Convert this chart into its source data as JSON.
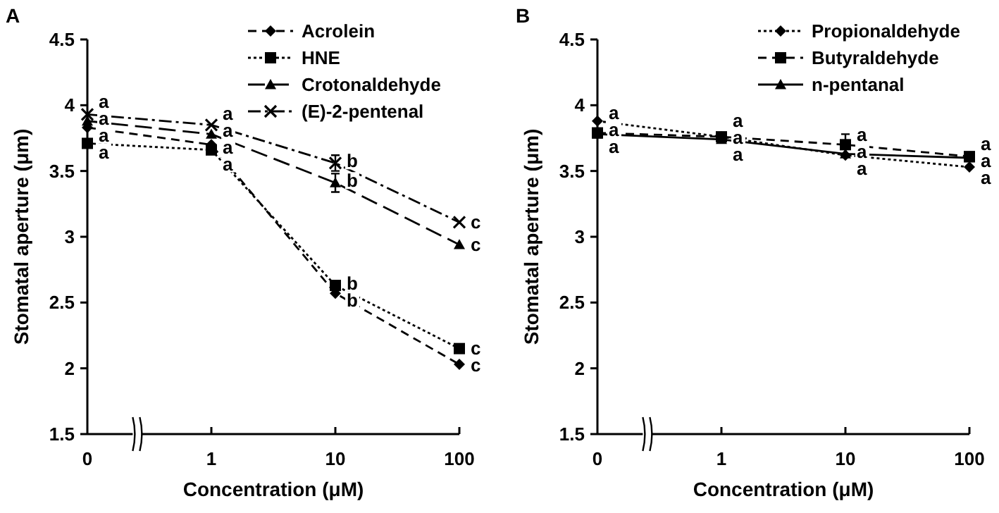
{
  "chart_data": [
    {
      "type": "line",
      "title": "A",
      "xlabel": "Concentration (μM)",
      "ylabel": "Stomatal aperture (μm)",
      "categories": [
        "0",
        "1",
        "10",
        "100"
      ],
      "ylim": [
        1.5,
        4.5
      ],
      "yticks": [
        1.5,
        2,
        2.5,
        3,
        3.5,
        4,
        4.5
      ],
      "legend": "top right",
      "series": [
        {
          "name": "Acrolein",
          "color": "#000000",
          "marker": "diamond",
          "line_style": "dashed",
          "values": [
            3.83,
            3.7,
            2.57,
            2.03
          ]
        },
        {
          "name": "HNE",
          "color": "#000000",
          "marker": "square",
          "line_style": "dotted",
          "values": [
            3.71,
            3.66,
            2.63,
            2.15
          ]
        },
        {
          "name": "Crotonaldehyde",
          "color": "#000000",
          "marker": "triangle",
          "line_style": "dashed",
          "values": [
            3.88,
            3.78,
            3.41,
            2.94
          ],
          "errors": [
            null,
            null,
            0.07,
            null
          ]
        },
        {
          "name": "(E)-2-pentenal",
          "color": "#000000",
          "marker": "cross",
          "line_style": "dashed",
          "values": [
            3.93,
            3.85,
            3.56,
            3.11
          ],
          "errors": [
            null,
            null,
            0.06,
            null
          ]
        }
      ],
      "annotations": [
        {
          "text": "a",
          "x": "0",
          "y": 3.93
        },
        {
          "text": "a",
          "x": "0",
          "y": 3.88
        },
        {
          "text": "a",
          "x": "0",
          "y": 3.83
        },
        {
          "text": "a",
          "x": "0",
          "y": 3.71
        },
        {
          "text": "a",
          "x": "1",
          "y": 3.85
        },
        {
          "text": "a",
          "x": "1",
          "y": 3.78
        },
        {
          "text": "a",
          "x": "1",
          "y": 3.7
        },
        {
          "text": "a",
          "x": "1",
          "y": 3.66
        },
        {
          "text": "b",
          "x": "10",
          "y": 3.56
        },
        {
          "text": "b",
          "x": "10",
          "y": 3.41
        },
        {
          "text": "b",
          "x": "10",
          "y": 2.63
        },
        {
          "text": "b",
          "x": "10",
          "y": 2.57
        },
        {
          "text": "c",
          "x": "100",
          "y": 3.11
        },
        {
          "text": "c",
          "x": "100",
          "y": 2.94
        },
        {
          "text": "c",
          "x": "100",
          "y": 2.15
        },
        {
          "text": "c",
          "x": "100",
          "y": 2.03
        }
      ]
    },
    {
      "type": "line",
      "title": "B",
      "xlabel": "Concentration (μM)",
      "ylabel": "Stomatal aperture (μm)",
      "categories": [
        "0",
        "1",
        "10",
        "100"
      ],
      "ylim": [
        1.5,
        4.5
      ],
      "yticks": [
        1.5,
        2,
        2.5,
        3,
        3.5,
        4,
        4.5
      ],
      "legend": "top right",
      "series": [
        {
          "name": "Propionaldehyde",
          "color": "#000000",
          "marker": "diamond",
          "line_style": "dotted",
          "values": [
            3.88,
            3.76,
            3.62,
            3.53
          ]
        },
        {
          "name": "Butyraldehyde",
          "color": "#000000",
          "marker": "square",
          "line_style": "dashed",
          "values": [
            3.79,
            3.76,
            3.7,
            3.61
          ],
          "errors": [
            null,
            null,
            0.08,
            null
          ]
        },
        {
          "name": "n-pentanal",
          "color": "#000000",
          "marker": "triangle",
          "line_style": "solid",
          "values": [
            3.78,
            3.74,
            3.63,
            3.6
          ]
        }
      ],
      "annotations": [
        {
          "text": "a",
          "x": "0",
          "y": 3.88
        },
        {
          "text": "a",
          "x": "0",
          "y": 3.79
        },
        {
          "text": "a",
          "x": "0",
          "y": 3.78
        },
        {
          "text": "a",
          "x": "1",
          "y": 3.76
        },
        {
          "text": "a",
          "x": "1",
          "y": 3.76
        },
        {
          "text": "a",
          "x": "1",
          "y": 3.74
        },
        {
          "text": "a",
          "x": "10",
          "y": 3.7
        },
        {
          "text": "a",
          "x": "10",
          "y": 3.63
        },
        {
          "text": "a",
          "x": "10",
          "y": 3.62
        },
        {
          "text": "a",
          "x": "100",
          "y": 3.61
        },
        {
          "text": "a",
          "x": "100",
          "y": 3.6
        },
        {
          "text": "a",
          "x": "100",
          "y": 3.53
        }
      ]
    }
  ]
}
